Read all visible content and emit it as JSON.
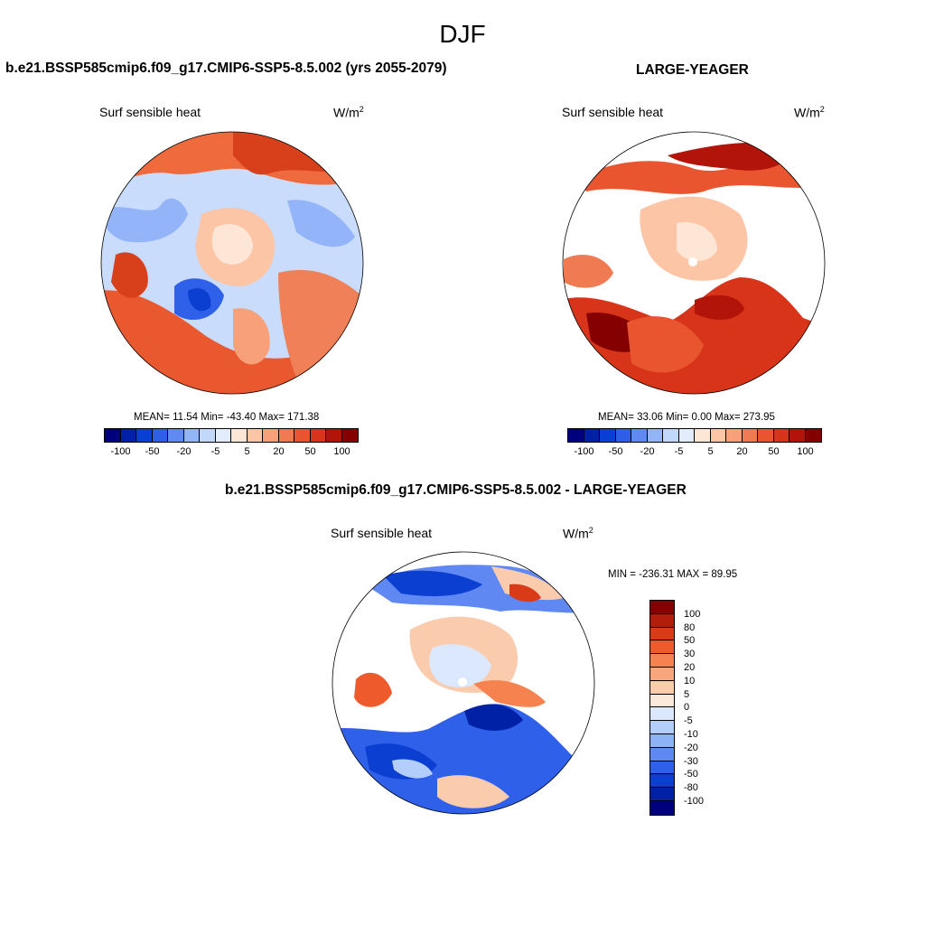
{
  "season": "DJF",
  "panels": {
    "model": {
      "title": "b.e21.BSSP585cmip6.f09_g17.CMIP6-SSP5-8.5.002 (yrs 2055-2079)",
      "variable": "Surf sensible heat",
      "units": "W/m",
      "units_exp": "2",
      "stats": "MEAN=  11.54  Min= -43.40  Max= 171.38"
    },
    "obs": {
      "title": "LARGE-YEAGER",
      "variable": "Surf sensible heat",
      "units": "W/m",
      "units_exp": "2",
      "stats": "MEAN=  33.06  Min=   0.00  Max= 273.95"
    },
    "diff": {
      "title": "b.e21.BSSP585cmip6.f09_g17.CMIP6-SSP5-8.5.002 - LARGE-YEAGER",
      "variable": "Surf sensible heat",
      "units": "W/m",
      "units_exp": "2",
      "stats": "MIN = -236.31 MAX =  89.95"
    }
  },
  "colorbars": {
    "horizontal": {
      "colors": [
        "#00007f",
        "#0020a8",
        "#0940d4",
        "#2f5fe9",
        "#6189f2",
        "#93b4f8",
        "#c2d8fb",
        "#e2ecfd",
        "#fde6d6",
        "#fcc5a6",
        "#f7a07a",
        "#f07a52",
        "#e8552f",
        "#d8341a",
        "#b2140a",
        "#850000"
      ],
      "labels": [
        "-100",
        "-50",
        "-20",
        "-5",
        "5",
        "20",
        "50",
        "100"
      ]
    },
    "vertical": {
      "colors": [
        "#850000",
        "#b21d0c",
        "#d93a17",
        "#ef5a2c",
        "#f6824f",
        "#f9a67c",
        "#fbcbae",
        "#fde9dc",
        "#dbe8fd",
        "#b4cefb",
        "#8fb1f8",
        "#5f88f2",
        "#2f60ea",
        "#0a3fd2",
        "#0020a6",
        "#00007f"
      ],
      "labels": [
        "100",
        "80",
        "50",
        "30",
        "20",
        "10",
        "5",
        "0",
        "-5",
        "-10",
        "-20",
        "-30",
        "-50",
        "-80",
        "-100"
      ]
    }
  }
}
